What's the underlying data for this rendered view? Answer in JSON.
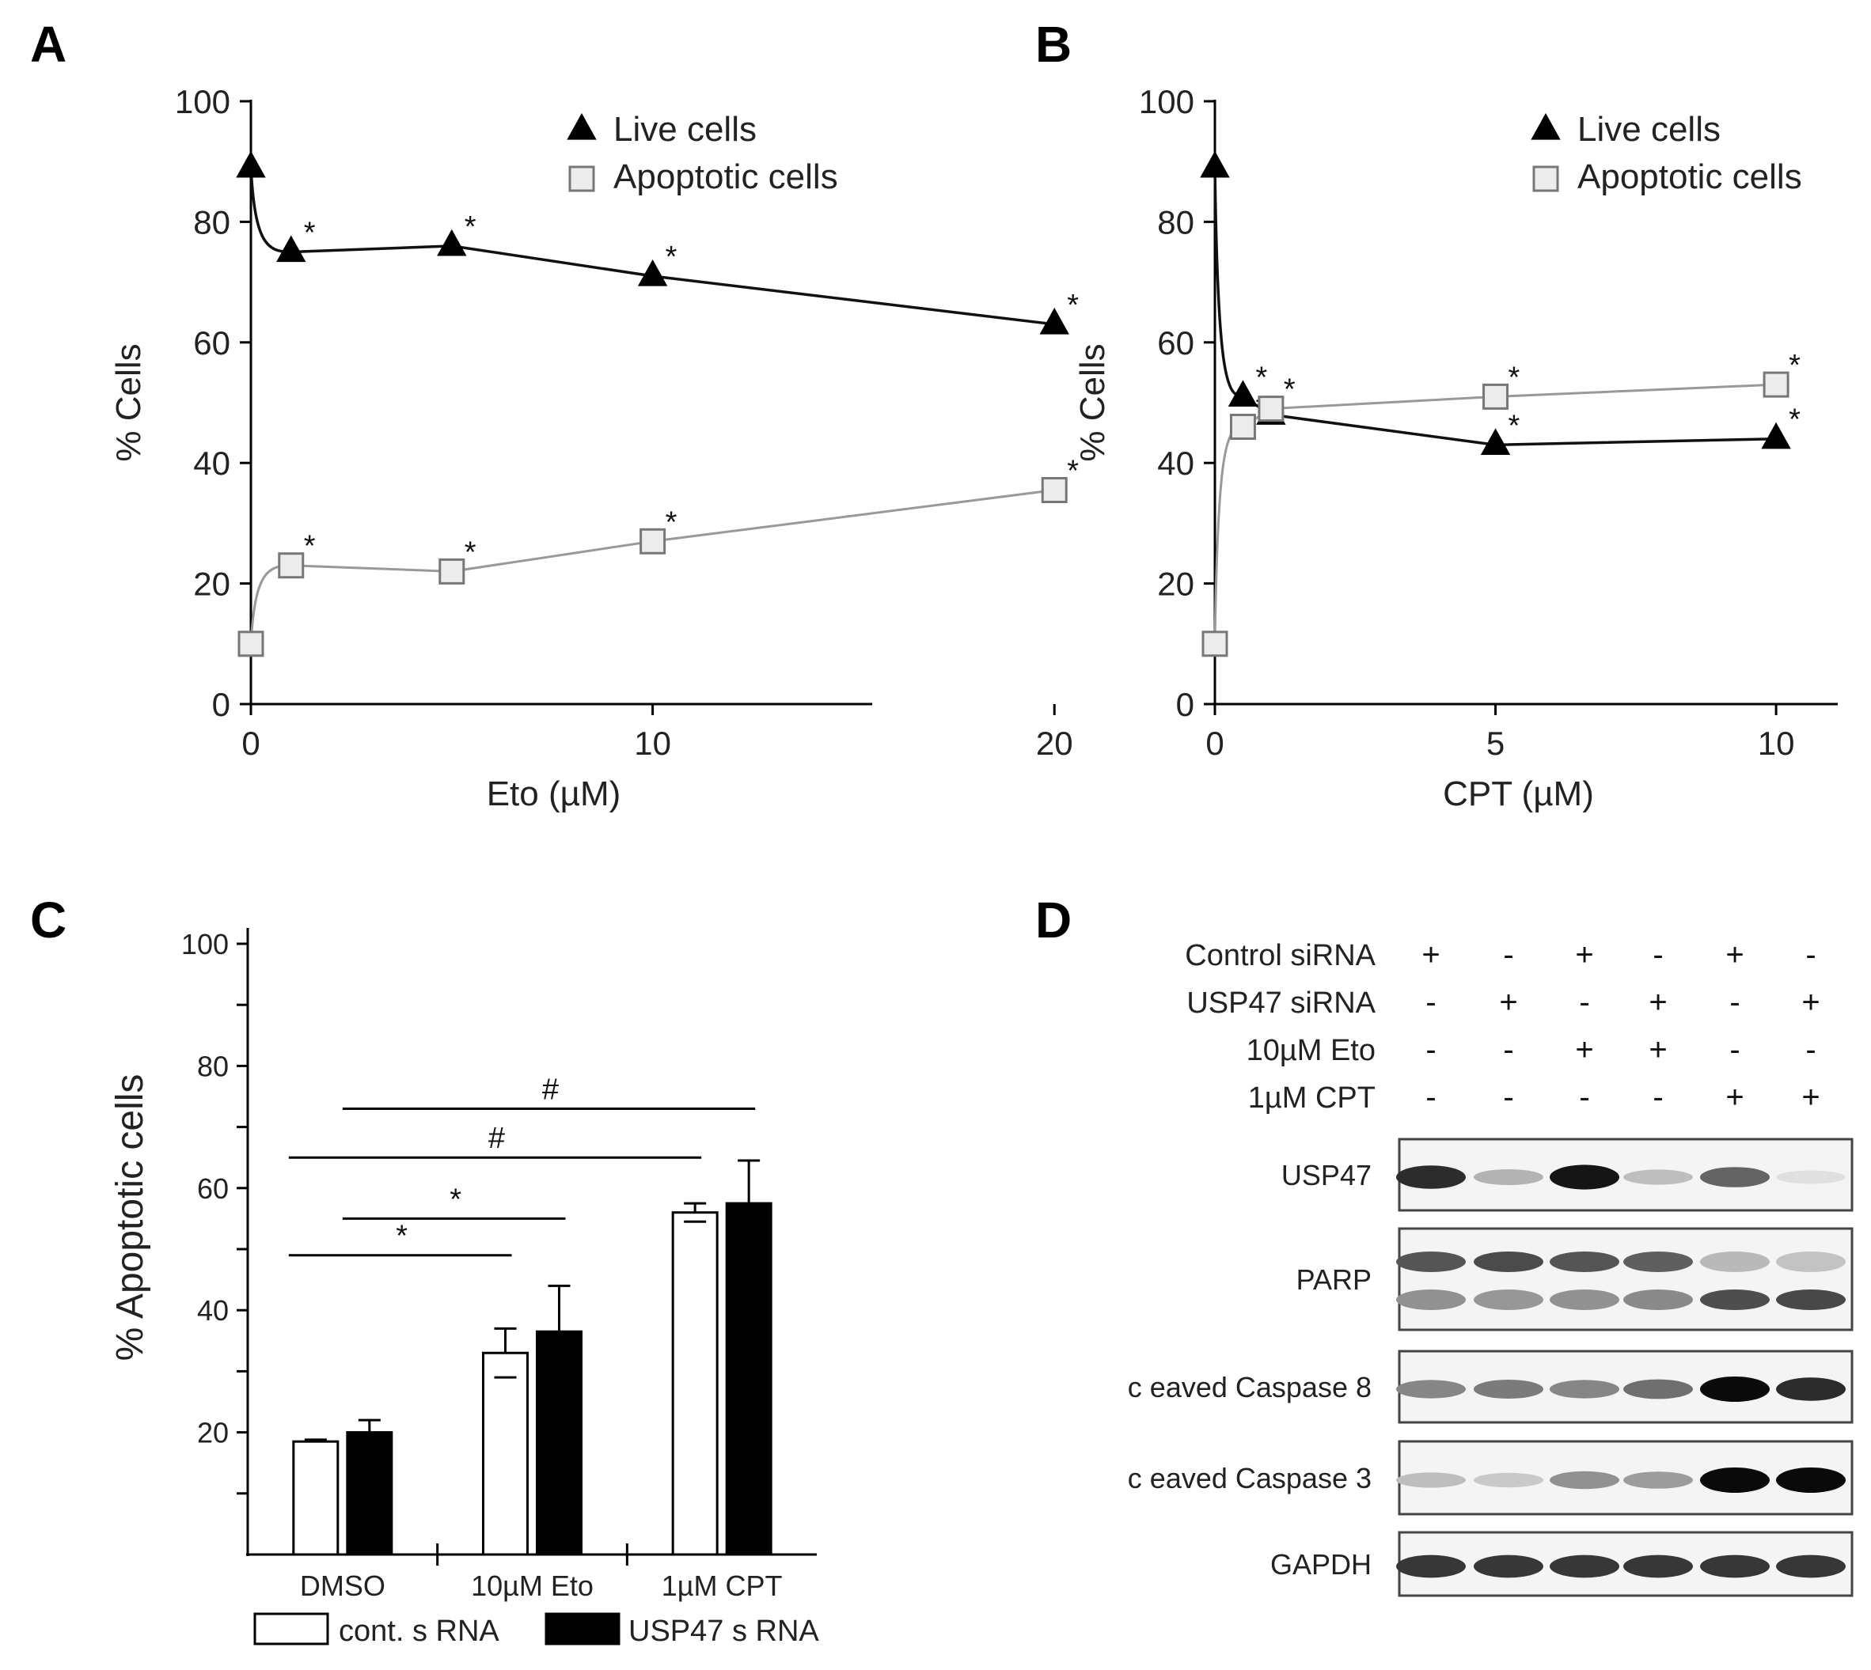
{
  "panels": {
    "A": {
      "label": "A"
    },
    "B": {
      "label": "B"
    },
    "C": {
      "label": "C"
    },
    "D": {
      "label": "D"
    }
  },
  "chart_data": [
    {
      "id": "A",
      "type": "line",
      "xlabel": "Eto  (µM)",
      "ylabel": "% Cells",
      "xlim": [
        0,
        21
      ],
      "ylim": [
        0,
        100
      ],
      "xticks": [
        0,
        10,
        20
      ],
      "yticks": [
        0,
        20,
        40,
        60,
        80,
        100
      ],
      "legend": [
        "Live cells",
        "Apoptotic cells"
      ],
      "legend_position": "top-right",
      "series": [
        {
          "name": "Live cells",
          "marker": "triangle",
          "x": [
            0,
            1,
            5,
            10,
            20
          ],
          "y": [
            89,
            75,
            76,
            71,
            63
          ],
          "significant": [
            false,
            true,
            true,
            true,
            true
          ]
        },
        {
          "name": "Apoptotic cells",
          "marker": "square",
          "x": [
            0,
            1,
            5,
            10,
            20
          ],
          "y": [
            10,
            23,
            22,
            27,
            35.5
          ],
          "significant": [
            false,
            true,
            true,
            true,
            true
          ]
        }
      ],
      "annotation": "*"
    },
    {
      "id": "B",
      "type": "line",
      "xlabel": "CPT  (µM)",
      "ylabel": "% Cells",
      "xlim": [
        0,
        11
      ],
      "ylim": [
        0,
        100
      ],
      "xticks": [
        0,
        5,
        10
      ],
      "yticks": [
        0,
        20,
        40,
        60,
        80,
        100
      ],
      "legend": [
        "Live cells",
        "Apoptotic cells"
      ],
      "legend_position": "top-right",
      "series": [
        {
          "name": "Live cells",
          "marker": "triangle",
          "x": [
            0,
            0.5,
            1,
            5,
            10
          ],
          "y": [
            89,
            51,
            48,
            43,
            44
          ],
          "significant": [
            false,
            true,
            false,
            true,
            true
          ]
        },
        {
          "name": "Apoptotic cells",
          "marker": "square",
          "x": [
            0,
            0.5,
            1,
            5,
            10
          ],
          "y": [
            10,
            46,
            49,
            51,
            53
          ],
          "significant": [
            false,
            true,
            true,
            true,
            true
          ]
        }
      ],
      "annotation": "*"
    },
    {
      "id": "C",
      "type": "bar",
      "ylabel": "% Apoptotic cells",
      "ylim": [
        0,
        100
      ],
      "yticks": [
        20,
        40,
        60,
        80,
        100
      ],
      "categories": [
        "DMSO",
        "10µM Eto",
        "1µM CPT"
      ],
      "series": [
        {
          "name": "cont. s RNA",
          "fill": "#ffffff",
          "values": [
            18.5,
            33,
            56
          ],
          "errors": [
            0.3,
            4,
            1.5
          ]
        },
        {
          "name": "USP47 s RNA",
          "fill": "#000000",
          "values": [
            20,
            36.5,
            57.5
          ],
          "errors": [
            2,
            7.5,
            7
          ]
        }
      ],
      "significance": [
        {
          "label": "*",
          "from": "DMSO:cont. s RNA",
          "to": "10µM Eto:cont. s RNA",
          "level": 49
        },
        {
          "label": "*",
          "from": "DMSO:USP47 s RNA",
          "to": "10µM Eto:USP47 s RNA",
          "level": 55
        },
        {
          "label": "#",
          "from": "DMSO:cont. s RNA",
          "to": "1µM CPT:cont. s RNA",
          "level": 65
        },
        {
          "label": "#",
          "from": "DMSO:USP47 s RNA",
          "to": "1µM CPT:USP47 s RNA",
          "level": 73
        }
      ],
      "legend_position": "bottom"
    }
  ],
  "blot": {
    "conditions": [
      {
        "label": "Control siRNA",
        "values": [
          "+",
          "-",
          "+",
          "-",
          "+",
          "-"
        ]
      },
      {
        "label": "USP47 siRNA",
        "values": [
          "-",
          "+",
          "-",
          "+",
          "-",
          "+"
        ]
      },
      {
        "label": "10µM Eto",
        "values": [
          "-",
          "-",
          "+",
          "+",
          "-",
          "-"
        ]
      },
      {
        "label": "1µM CPT",
        "values": [
          "-",
          "-",
          "-",
          "-",
          "+",
          "+"
        ]
      }
    ],
    "bands": [
      {
        "label": "USP47",
        "intensity": [
          0.85,
          0.25,
          0.95,
          0.2,
          0.6,
          0.05
        ]
      },
      {
        "label": "PARP",
        "intensity": [
          0.75,
          0.8,
          0.75,
          0.7,
          0.25,
          0.2
        ]
      },
      {
        "label": "c eaved Caspase 8",
        "intensity": [
          0.45,
          0.5,
          0.45,
          0.55,
          1.0,
          0.85
        ]
      },
      {
        "label": "c eaved Caspase 3",
        "intensity": [
          0.2,
          0.15,
          0.4,
          0.35,
          1.0,
          1.0
        ]
      },
      {
        "label": "GAPDH",
        "intensity": [
          0.8,
          0.8,
          0.8,
          0.8,
          0.8,
          0.8
        ]
      }
    ]
  }
}
